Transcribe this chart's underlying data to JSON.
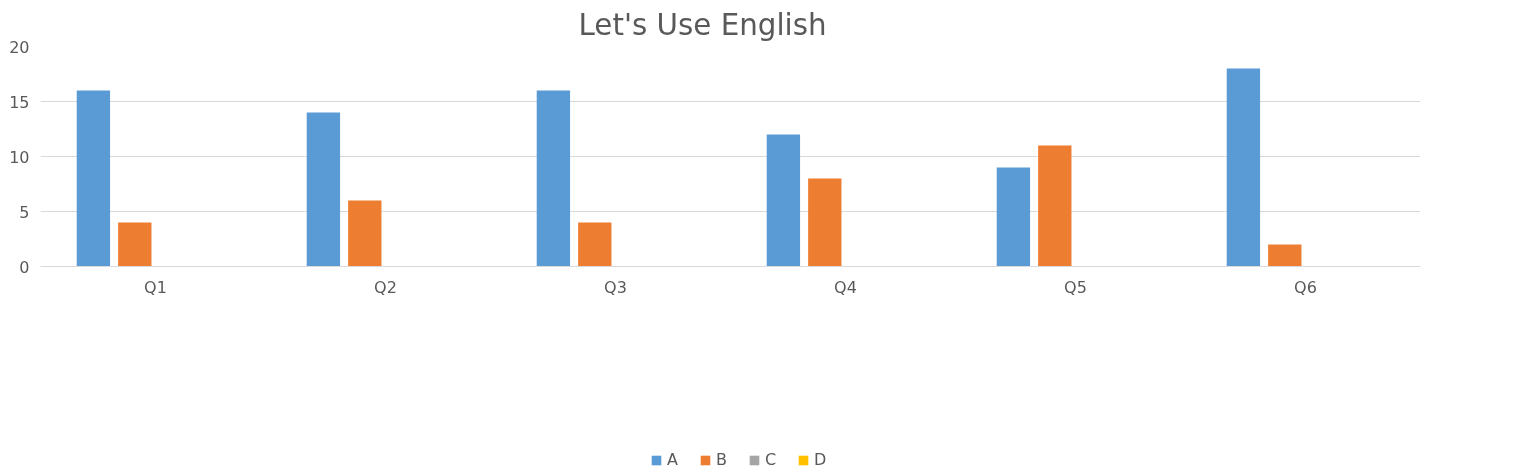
{
  "chart_data": {
    "type": "bar",
    "title": "Let's    Use    English",
    "categories": [
      "Q1",
      "Q2",
      "Q3",
      "Q4",
      "Q5",
      "Q6"
    ],
    "series": [
      {
        "name": "A",
        "color": "#5b9bd5",
        "values": [
          16,
          14,
          16,
          12,
          9,
          18
        ]
      },
      {
        "name": "B",
        "color": "#ed7d31",
        "values": [
          4,
          6,
          4,
          8,
          11,
          2
        ]
      },
      {
        "name": "C",
        "color": "#a5a5a5",
        "values": [
          0,
          0,
          0,
          0,
          0,
          0
        ]
      },
      {
        "name": "D",
        "color": "#ffc000",
        "values": [
          0,
          0,
          0,
          0,
          0,
          0
        ]
      }
    ],
    "ylim": [
      0,
      20
    ],
    "yticks": [
      0,
      5,
      10,
      15,
      20
    ],
    "grid": "y",
    "legend": "bottom"
  }
}
